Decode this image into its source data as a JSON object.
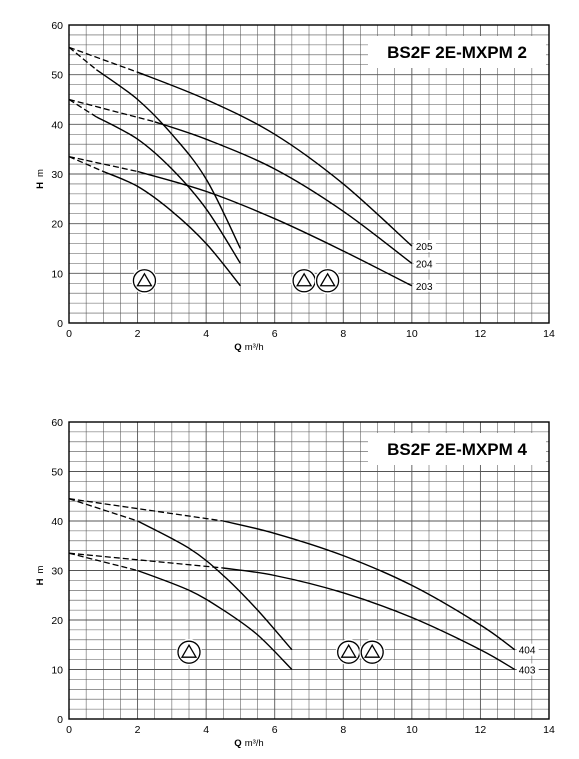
{
  "chart_data": [
    {
      "type": "line",
      "title": "BS2F 2E-MXPM 2",
      "xlabel_bold": "Q",
      "xlabel_unit": "m³/h",
      "ylabel_bold": "H",
      "ylabel_unit": "m",
      "xlim": [
        0,
        14
      ],
      "ylim": [
        0,
        60
      ],
      "xticks": [
        0,
        2,
        4,
        6,
        8,
        10,
        12,
        14
      ],
      "yticks": [
        0,
        10,
        20,
        30,
        40,
        50,
        60
      ],
      "grid": true,
      "series": [
        {
          "name": "205",
          "dashed": [
            [
              0,
              55.5
            ],
            [
              2,
              50.5
            ]
          ],
          "solid": [
            [
              2,
              50.5
            ],
            [
              4,
              45
            ],
            [
              6,
              38
            ],
            [
              8,
              28
            ],
            [
              10,
              15.5
            ]
          ]
        },
        {
          "name": "204",
          "dashed": [
            [
              0,
              45
            ],
            [
              2.5,
              40.5
            ]
          ],
          "solid": [
            [
              2.5,
              40.5
            ],
            [
              4,
              37
            ],
            [
              6,
              31
            ],
            [
              8,
              22.5
            ],
            [
              10,
              12
            ]
          ]
        },
        {
          "name": "203",
          "dashed": [
            [
              0,
              33.5
            ],
            [
              2,
              30.5
            ]
          ],
          "solid": [
            [
              2,
              30.5
            ],
            [
              4,
              26.5
            ],
            [
              6,
              21
            ],
            [
              8,
              14.5
            ],
            [
              10,
              7.5
            ]
          ]
        },
        {
          "name": "",
          "dashed": [
            [
              0,
              55.5
            ],
            [
              0.8,
              51
            ]
          ],
          "solid": [
            [
              0.8,
              51
            ],
            [
              2,
              45
            ],
            [
              3,
              38
            ],
            [
              4,
              29
            ],
            [
              5,
              15
            ]
          ]
        },
        {
          "name": "",
          "dashed": [
            [
              0,
              45
            ],
            [
              0.8,
              41.5
            ]
          ],
          "solid": [
            [
              0.8,
              41.5
            ],
            [
              2,
              37
            ],
            [
              3,
              31
            ],
            [
              4,
              23
            ],
            [
              5,
              12
            ]
          ]
        },
        {
          "name": "",
          "dashed": [
            [
              0,
              33.5
            ],
            [
              1,
              30.5
            ]
          ],
          "solid": [
            [
              1,
              30.5
            ],
            [
              2,
              27.5
            ],
            [
              3,
              22.5
            ],
            [
              4,
              16
            ],
            [
              5,
              7.5
            ]
          ]
        }
      ],
      "symbols": [
        {
          "x": 2.2,
          "y": 8.5,
          "count": 1
        },
        {
          "x": 7.2,
          "y": 8.5,
          "count": 2
        }
      ]
    },
    {
      "type": "line",
      "title": "BS2F 2E-MXPM 4",
      "xlabel_bold": "Q",
      "xlabel_unit": "m³/h",
      "ylabel_bold": "H",
      "ylabel_unit": "m",
      "xlim": [
        0,
        14
      ],
      "ylim": [
        0,
        60
      ],
      "xticks": [
        0,
        2,
        4,
        6,
        8,
        10,
        12,
        14
      ],
      "yticks": [
        0,
        10,
        20,
        30,
        40,
        50,
        60
      ],
      "grid": true,
      "series": [
        {
          "name": "404",
          "dashed": [
            [
              0,
              44.5
            ],
            [
              4.5,
              40
            ]
          ],
          "solid": [
            [
              4.5,
              40
            ],
            [
              6,
              37.5
            ],
            [
              8,
              33
            ],
            [
              10,
              27
            ],
            [
              12,
              19
            ],
            [
              13,
              14
            ]
          ]
        },
        {
          "name": "403",
          "dashed": [
            [
              0,
              33.5
            ],
            [
              4.5,
              30.5
            ]
          ],
          "solid": [
            [
              4.5,
              30.5
            ],
            [
              6,
              29
            ],
            [
              8,
              25.5
            ],
            [
              10,
              20.5
            ],
            [
              12,
              14
            ],
            [
              13,
              10
            ]
          ]
        },
        {
          "name": "",
          "dashed": [
            [
              0,
              44.5
            ],
            [
              2,
              40
            ]
          ],
          "solid": [
            [
              2,
              40
            ],
            [
              3.5,
              34.5
            ],
            [
              4.5,
              29
            ],
            [
              5.5,
              22
            ],
            [
              6.5,
              14
            ]
          ]
        },
        {
          "name": "",
          "dashed": [
            [
              0,
              33.5
            ],
            [
              2,
              30
            ]
          ],
          "solid": [
            [
              2,
              30
            ],
            [
              3.5,
              26
            ],
            [
              4.5,
              22
            ],
            [
              5.5,
              17
            ],
            [
              6.5,
              10
            ]
          ]
        }
      ],
      "symbols": [
        {
          "x": 3.5,
          "y": 13.5,
          "count": 1
        },
        {
          "x": 8.5,
          "y": 13.5,
          "count": 2
        }
      ]
    }
  ]
}
